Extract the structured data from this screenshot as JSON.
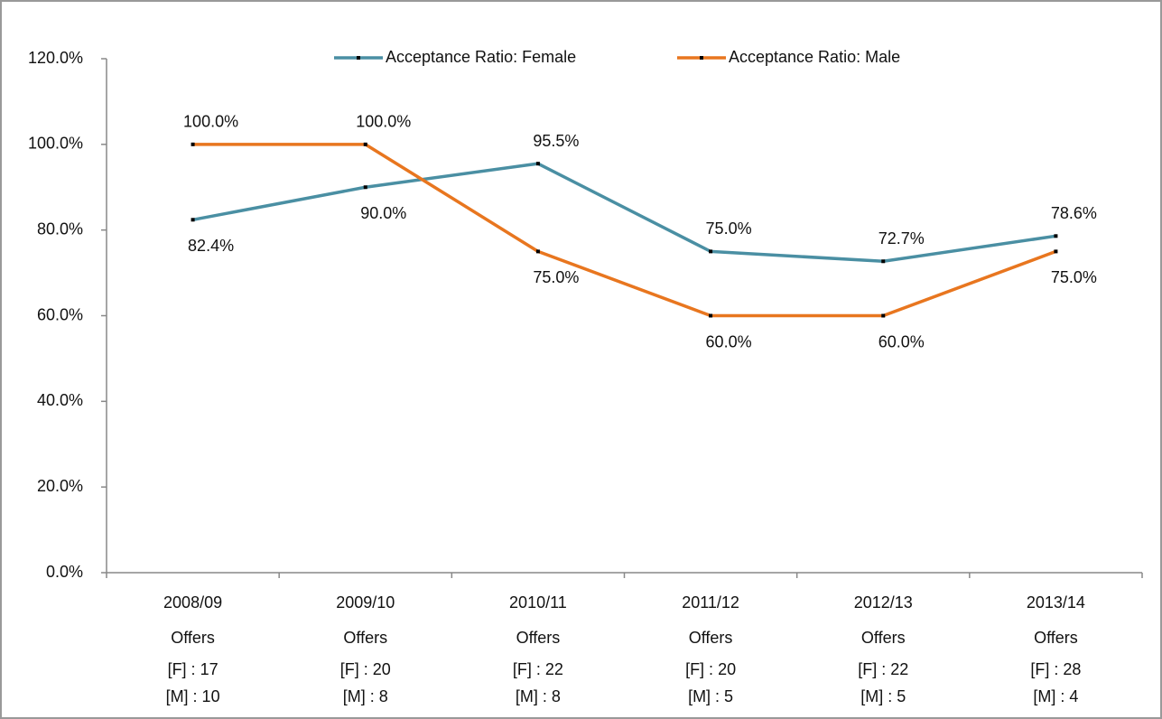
{
  "chart_data": {
    "type": "line",
    "categories": [
      [
        "2008/09",
        "Offers",
        "[F] : 17",
        "[M] : 10"
      ],
      [
        "2009/10",
        "Offers",
        "[F] : 20",
        "[M] : 8"
      ],
      [
        "2010/11",
        "Offers",
        "[F] : 22",
        "[M] : 8"
      ],
      [
        "2011/12",
        "Offers",
        "[F] : 20",
        "[M] : 5"
      ],
      [
        "2012/13",
        "Offers",
        "[F] : 22",
        "[M] : 5"
      ],
      [
        "2013/14",
        "Offers",
        "[F] : 28",
        "[M] : 4"
      ]
    ],
    "series": [
      {
        "name": "Acceptance Ratio: Female",
        "color": "#4a8fa3",
        "values": [
          82.4,
          90.0,
          95.5,
          75.0,
          72.7,
          78.6
        ],
        "value_labels": [
          "82.4%",
          "90.0%",
          "95.5%",
          "75.0%",
          "72.7%",
          "78.6%"
        ]
      },
      {
        "name": "Acceptance Ratio: Male",
        "color": "#e8761f",
        "values": [
          100.0,
          100.0,
          75.0,
          60.0,
          60.0,
          75.0
        ],
        "value_labels": [
          "100.0%",
          "100.0%",
          "75.0%",
          "60.0%",
          "60.0%",
          "75.0%"
        ]
      }
    ],
    "ylim": [
      0,
      120
    ],
    "yticks": [
      {
        "value": 0,
        "label": "0.0%"
      },
      {
        "value": 20,
        "label": "20.0%"
      },
      {
        "value": 40,
        "label": "40.0%"
      },
      {
        "value": 60,
        "label": "60.0%"
      },
      {
        "value": 80,
        "label": "80.0%"
      },
      {
        "value": 100,
        "label": "100.0%"
      },
      {
        "value": 120,
        "label": "120.0%"
      }
    ],
    "legend": "top"
  }
}
